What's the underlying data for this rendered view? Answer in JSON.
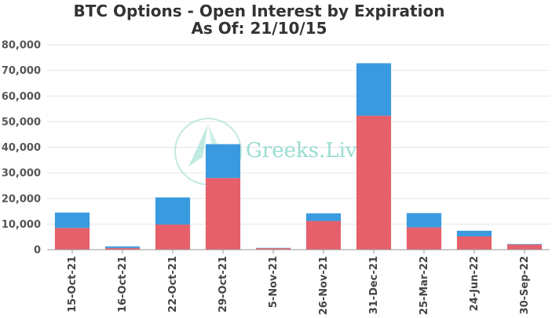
{
  "chart_data": {
    "type": "bar",
    "stacked": true,
    "title": "BTC Options - Open Interest by Expiration",
    "subtitle": "As Of: 21/10/15",
    "xlabel": "",
    "ylabel": "",
    "ylim": [
      0,
      80000
    ],
    "yticks": [
      "0",
      "10,000",
      "20,000",
      "30,000",
      "40,000",
      "50,000",
      "60,000",
      "70,000",
      "80,000"
    ],
    "ytick_values": [
      0,
      10000,
      20000,
      30000,
      40000,
      50000,
      60000,
      70000,
      80000
    ],
    "grid": true,
    "categories": [
      "15-Oct-21",
      "16-Oct-21",
      "22-Oct-21",
      "29-Oct-21",
      "5-Nov-21",
      "26-Nov-21",
      "31-Dec-21",
      "25-Mar-22",
      "24-Jun-22",
      "30-Sep-22"
    ],
    "series": [
      {
        "color": "#e5606a",
        "values": [
          8500,
          700,
          9800,
          28000,
          600,
          11200,
          52300,
          8700,
          5200,
          2000
        ]
      },
      {
        "color": "#3a9ae0",
        "values": [
          6000,
          600,
          10600,
          13200,
          100,
          3000,
          20500,
          5600,
          2200,
          200
        ]
      }
    ]
  },
  "watermark": {
    "text": "Greeks.Live",
    "color": "#8fd9cc",
    "icon": "greeks-live-logo-icon"
  }
}
